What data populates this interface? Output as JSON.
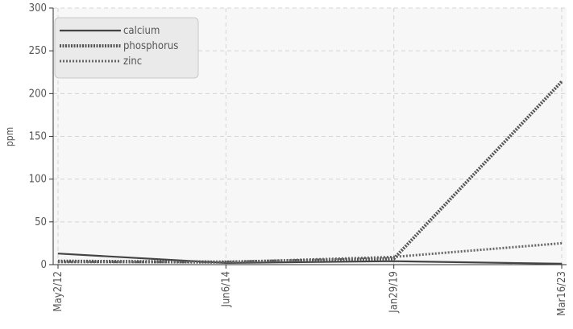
{
  "chart_data": {
    "type": "line",
    "title": "",
    "xlabel": "",
    "ylabel": "ppm",
    "categories": [
      "May2/12",
      "Jun6/14",
      "Jan29/19",
      "Mar16/23"
    ],
    "ylim": [
      0,
      300
    ],
    "yticks": [
      0,
      50,
      100,
      150,
      200,
      250,
      300
    ],
    "grid": true,
    "legend_position": "top-left",
    "series": [
      {
        "name": "calcium",
        "color": "#444444",
        "style": "solid",
        "values": [
          13,
          2,
          4,
          1
        ]
      },
      {
        "name": "phosphorus",
        "color": "#555555",
        "style": "dotted-thick",
        "values": [
          4,
          3,
          7,
          214
        ]
      },
      {
        "name": "zinc",
        "color": "#666666",
        "style": "dotted-thin",
        "values": [
          3,
          3,
          9,
          25
        ]
      }
    ]
  }
}
